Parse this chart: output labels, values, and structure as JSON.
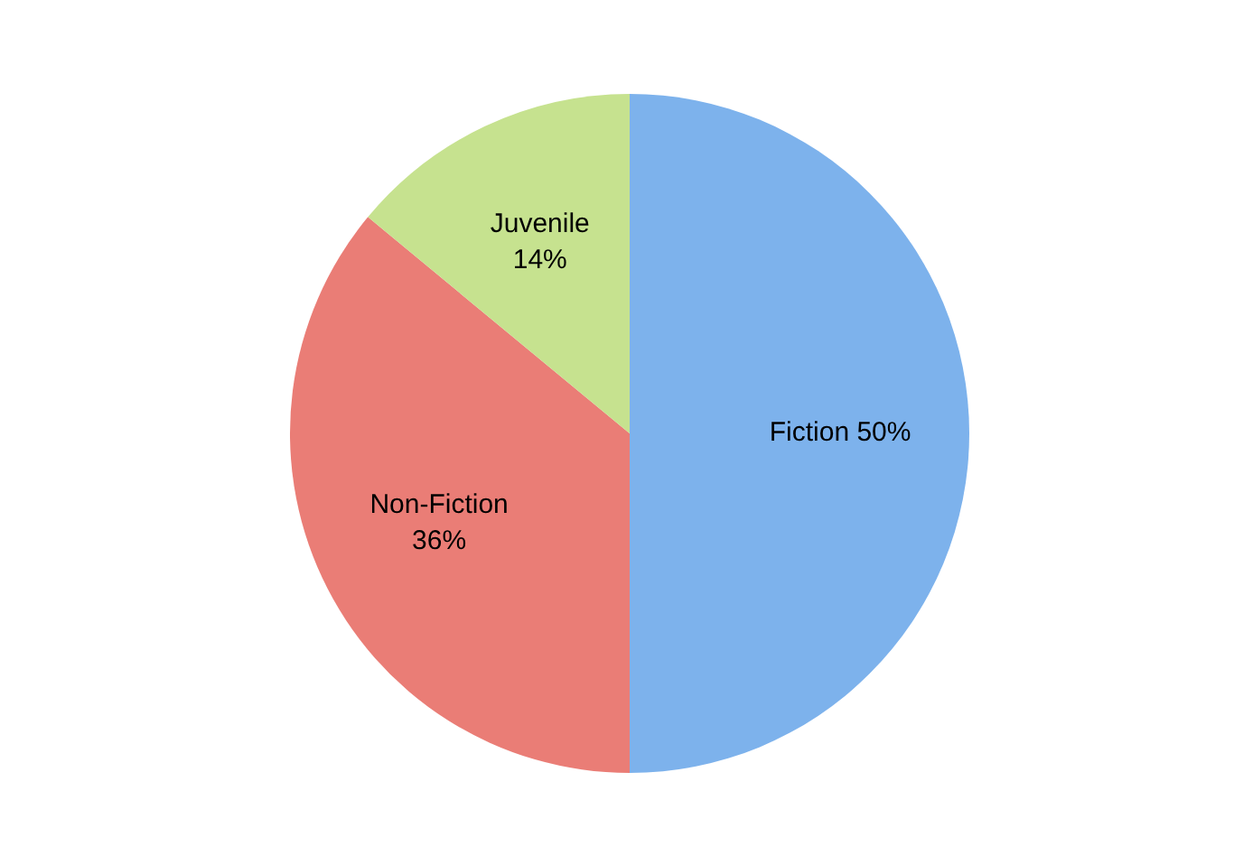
{
  "chart_data": {
    "type": "pie",
    "categories": [
      "Fiction",
      "Non-Fiction",
      "Juvenile"
    ],
    "values": [
      50,
      36,
      14
    ],
    "value_labels": [
      "50%",
      "36%",
      "14%"
    ],
    "colors": [
      "#7db2ec",
      "#ea7d76",
      "#c6e28f"
    ],
    "legend": false
  }
}
